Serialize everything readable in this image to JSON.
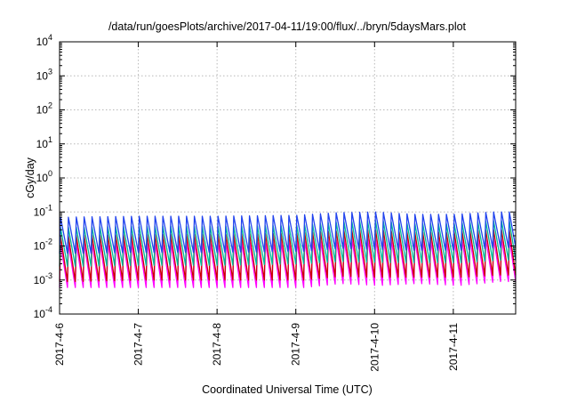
{
  "chart_data": {
    "type": "line",
    "title": "/data/run/goesPlots/archive/2017-04-11/19:00/flux/../bryn/5daysMars.plot",
    "xlabel": "Coordinated Universal Time (UTC)",
    "ylabel": "cGy/day",
    "yscale": "log",
    "ylim": [
      0.0001,
      10000
    ],
    "xlim": [
      "2017-04-06T00:00",
      "2017-04-11T19:00"
    ],
    "grid": true,
    "y_ticks": [
      {
        "base": "10",
        "exp": "-4",
        "value": 0.0001
      },
      {
        "base": "10",
        "exp": "-3",
        "value": 0.001
      },
      {
        "base": "10",
        "exp": "-2",
        "value": 0.01
      },
      {
        "base": "10",
        "exp": "-1",
        "value": 0.1
      },
      {
        "base": "10",
        "exp": "0",
        "value": 1
      },
      {
        "base": "10",
        "exp": "1",
        "value": 10
      },
      {
        "base": "10",
        "exp": "2",
        "value": 100
      },
      {
        "base": "10",
        "exp": "3",
        "value": 1000
      },
      {
        "base": "10",
        "exp": "4",
        "value": 10000
      }
    ],
    "x_ticks": [
      {
        "label": "2017-4-6",
        "date": "2017-04-06T00:00"
      },
      {
        "label": "2017-4-7",
        "date": "2017-04-07T00:00"
      },
      {
        "label": "2017-4-8",
        "date": "2017-04-08T00:00"
      },
      {
        "label": "2017-4-9",
        "date": "2017-04-09T00:00"
      },
      {
        "label": "2017-4-10",
        "date": "2017-04-10T00:00"
      },
      {
        "label": "2017-4-11",
        "date": "2017-04-11T00:00"
      }
    ],
    "sawtooth_period_hours": 2.4,
    "series": [
      {
        "color": "#ff00ff",
        "x": [
          "2017-04-06T00:00",
          "2017-04-07T00:00",
          "2017-04-08T00:00",
          "2017-04-09T00:00",
          "2017-04-09T12:00",
          "2017-04-10T00:00",
          "2017-04-10T12:00",
          "2017-04-11T00:00",
          "2017-04-11T12:00",
          "2017-04-11T19:00"
        ],
        "peak": [
          0.012,
          0.013,
          0.013,
          0.014,
          0.016,
          0.017,
          0.015,
          0.015,
          0.017,
          0.017
        ],
        "trough": [
          0.0006,
          0.0006,
          0.0006,
          0.0006,
          0.0008,
          0.0007,
          0.0008,
          0.0007,
          0.0009,
          0.0009
        ]
      },
      {
        "color": "#cc0000",
        "x": [
          "2017-04-06T00:00",
          "2017-04-07T00:00",
          "2017-04-08T00:00",
          "2017-04-09T00:00",
          "2017-04-09T12:00",
          "2017-04-10T00:00",
          "2017-04-10T12:00",
          "2017-04-11T00:00",
          "2017-04-11T12:00",
          "2017-04-11T19:00"
        ],
        "peak": [
          0.02,
          0.022,
          0.022,
          0.024,
          0.028,
          0.03,
          0.025,
          0.026,
          0.03,
          0.03
        ],
        "trough": [
          0.0009,
          0.001,
          0.001,
          0.001,
          0.0013,
          0.0012,
          0.0012,
          0.0012,
          0.0014,
          0.0014
        ]
      },
      {
        "color": "#00bb99",
        "x": [
          "2017-04-06T00:00",
          "2017-04-07T00:00",
          "2017-04-08T00:00",
          "2017-04-09T00:00",
          "2017-04-09T12:00",
          "2017-04-10T00:00",
          "2017-04-10T12:00",
          "2017-04-11T00:00",
          "2017-04-11T12:00",
          "2017-04-11T19:00"
        ],
        "peak": [
          0.035,
          0.038,
          0.038,
          0.04,
          0.05,
          0.055,
          0.045,
          0.045,
          0.055,
          0.055
        ],
        "trough": [
          0.0025,
          0.0027,
          0.0027,
          0.003,
          0.0035,
          0.0033,
          0.0032,
          0.0032,
          0.0038,
          0.0038
        ]
      },
      {
        "color": "#2244ee",
        "x": [
          "2017-04-06T00:00",
          "2017-04-07T00:00",
          "2017-04-08T00:00",
          "2017-04-09T00:00",
          "2017-04-09T12:00",
          "2017-04-10T00:00",
          "2017-04-10T12:00",
          "2017-04-11T00:00",
          "2017-04-11T12:00",
          "2017-04-11T19:00"
        ],
        "peak": [
          0.07,
          0.075,
          0.075,
          0.08,
          0.095,
          0.1,
          0.085,
          0.085,
          0.1,
          0.1
        ],
        "trough": [
          0.006,
          0.0065,
          0.0065,
          0.007,
          0.0085,
          0.008,
          0.0075,
          0.0075,
          0.009,
          0.009
        ]
      }
    ]
  }
}
